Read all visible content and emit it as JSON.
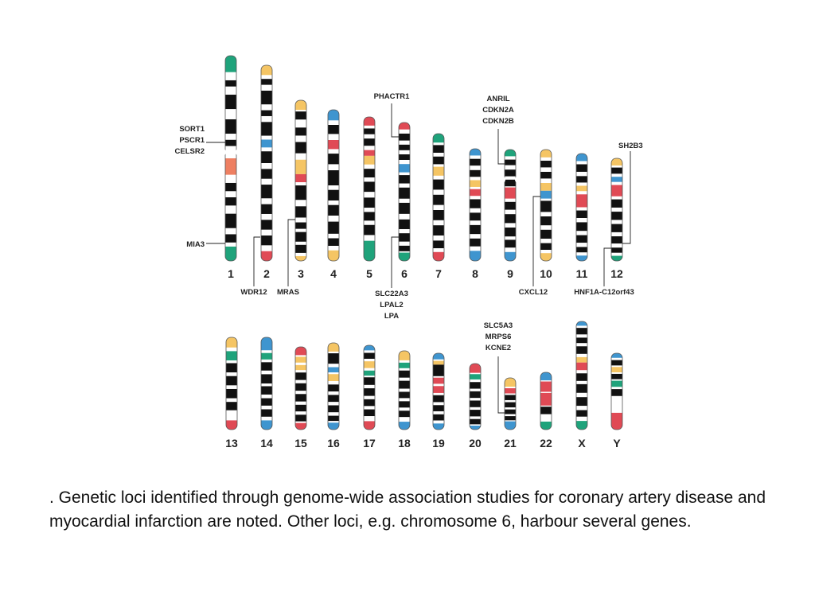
{
  "figure": {
    "colors": {
      "band": "#111111",
      "white": "#ffffff",
      "outline": "#555555",
      "green": "#1fa37b",
      "yellow": "#f5c564",
      "blue": "#3f95cf",
      "red": "#e04a55",
      "salmon": "#ee7f61"
    },
    "chromosomes": [
      {
        "id": "1",
        "label": "1"
      },
      {
        "id": "2",
        "label": "2"
      },
      {
        "id": "3",
        "label": "3"
      },
      {
        "id": "4",
        "label": "4"
      },
      {
        "id": "5",
        "label": "5"
      },
      {
        "id": "6",
        "label": "6"
      },
      {
        "id": "7",
        "label": "7"
      },
      {
        "id": "8",
        "label": "8"
      },
      {
        "id": "9",
        "label": "9"
      },
      {
        "id": "10",
        "label": "10"
      },
      {
        "id": "11",
        "label": "11"
      },
      {
        "id": "12",
        "label": "12"
      },
      {
        "id": "13",
        "label": "13"
      },
      {
        "id": "14",
        "label": "14"
      },
      {
        "id": "15",
        "label": "15"
      },
      {
        "id": "16",
        "label": "16"
      },
      {
        "id": "17",
        "label": "17"
      },
      {
        "id": "18",
        "label": "18"
      },
      {
        "id": "19",
        "label": "19"
      },
      {
        "id": "20",
        "label": "20"
      },
      {
        "id": "21",
        "label": "21"
      },
      {
        "id": "22",
        "label": "22"
      },
      {
        "id": "X",
        "label": "X"
      },
      {
        "id": "Y",
        "label": "Y"
      }
    ],
    "loci": [
      {
        "chromosome": "1",
        "genes": [
          "SORT1",
          "PSCR1",
          "CELSR2"
        ]
      },
      {
        "chromosome": "1",
        "genes": [
          "MIA3"
        ]
      },
      {
        "chromosome": "2",
        "genes": [
          "WDR12"
        ]
      },
      {
        "chromosome": "3",
        "genes": [
          "MRAS"
        ]
      },
      {
        "chromosome": "6",
        "genes": [
          "PHACTR1"
        ]
      },
      {
        "chromosome": "6",
        "genes": [
          "SLC22A3",
          "LPAL2",
          "LPA"
        ]
      },
      {
        "chromosome": "9",
        "genes": [
          "ANRIL",
          "CDKN2A",
          "CDKN2B"
        ]
      },
      {
        "chromosome": "10",
        "genes": [
          "CXCL12"
        ]
      },
      {
        "chromosome": "12",
        "genes": [
          "SH2B3"
        ]
      },
      {
        "chromosome": "12",
        "genes": [
          "HNF1A-C12orf43"
        ]
      },
      {
        "chromosome": "21",
        "genes": [
          "SLC5A3",
          "MRPS6",
          "KCNE2"
        ]
      }
    ]
  },
  "caption": ". Genetic loci identified through genome-wide association studies for coronary artery disease and myocardial infarction are noted. Other loci, e.g. chromosome 6, harbour several genes."
}
